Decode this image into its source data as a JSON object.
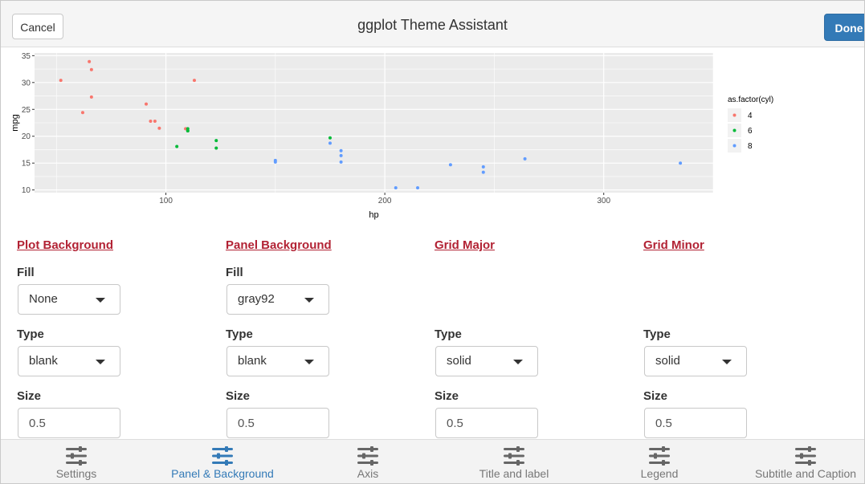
{
  "header": {
    "cancel_label": "Cancel",
    "title": "ggplot Theme Assistant",
    "done_label": "Done"
  },
  "chart_data": {
    "type": "scatter",
    "title": "",
    "xlabel": "hp",
    "ylabel": "mpg",
    "xlim": [
      40,
      350
    ],
    "ylim": [
      9.5,
      35.5
    ],
    "x_ticks": [
      100,
      200,
      300
    ],
    "y_ticks": [
      10,
      15,
      20,
      25,
      30,
      35
    ],
    "grid": true,
    "panel_background": "#ebebeb",
    "legend_title": "as.factor(cyl)",
    "legend_position": "right",
    "series": [
      {
        "name": "4",
        "color": "#f8766d",
        "points": [
          [
            52,
            30.4
          ],
          [
            62,
            24.4
          ],
          [
            65,
            33.9
          ],
          [
            66,
            32.4
          ],
          [
            66,
            27.3
          ],
          [
            91,
            26
          ],
          [
            93,
            22.8
          ],
          [
            95,
            22.8
          ],
          [
            97,
            21.5
          ],
          [
            109,
            21.4
          ],
          [
            113,
            30.4
          ]
        ]
      },
      {
        "name": "6",
        "color": "#00ba38",
        "points": [
          [
            105,
            18.1
          ],
          [
            110,
            21
          ],
          [
            110,
            21.4
          ],
          [
            110,
            21
          ],
          [
            123,
            19.2
          ],
          [
            123,
            17.8
          ],
          [
            175,
            19.7
          ]
        ]
      },
      {
        "name": "8",
        "color": "#619cff",
        "points": [
          [
            150,
            15.5
          ],
          [
            150,
            15.2
          ],
          [
            175,
            18.7
          ],
          [
            180,
            16.4
          ],
          [
            180,
            17.3
          ],
          [
            180,
            15.2
          ],
          [
            205,
            10.4
          ],
          [
            215,
            10.4
          ],
          [
            230,
            14.7
          ],
          [
            245,
            14.3
          ],
          [
            245,
            13.3
          ],
          [
            264,
            15.8
          ],
          [
            335,
            15
          ]
        ]
      }
    ]
  },
  "sections": [
    {
      "title": "Plot Background",
      "fill_label": "Fill",
      "fill_value": "None",
      "type_label": "Type",
      "type_value": "blank",
      "size_label": "Size",
      "size_value": "0.5"
    },
    {
      "title": "Panel Background",
      "fill_label": "Fill",
      "fill_value": "gray92",
      "type_label": "Type",
      "type_value": "blank",
      "size_label": "Size",
      "size_value": "0.5"
    },
    {
      "title": "Grid Major",
      "type_label": "Type",
      "type_value": "solid",
      "size_label": "Size",
      "size_value": "0.5"
    },
    {
      "title": "Grid Minor",
      "type_label": "Type",
      "type_value": "solid",
      "size_label": "Size",
      "size_value": "0.5"
    }
  ],
  "tabs": [
    {
      "label": "Settings",
      "icon": "sliders-icon",
      "active": false
    },
    {
      "label": "Panel & Background",
      "icon": "sliders-icon",
      "active": true
    },
    {
      "label": "Axis",
      "icon": "sliders-icon",
      "active": false
    },
    {
      "label": "Title and label",
      "icon": "sliders-icon",
      "active": false
    },
    {
      "label": "Legend",
      "icon": "sliders-icon",
      "active": false
    },
    {
      "label": "Subtitle and Caption",
      "icon": "sliders-icon",
      "active": false
    }
  ],
  "colors": {
    "accent": "#337ab7",
    "section_title": "#b22234",
    "tab_inactive": "#777777"
  }
}
